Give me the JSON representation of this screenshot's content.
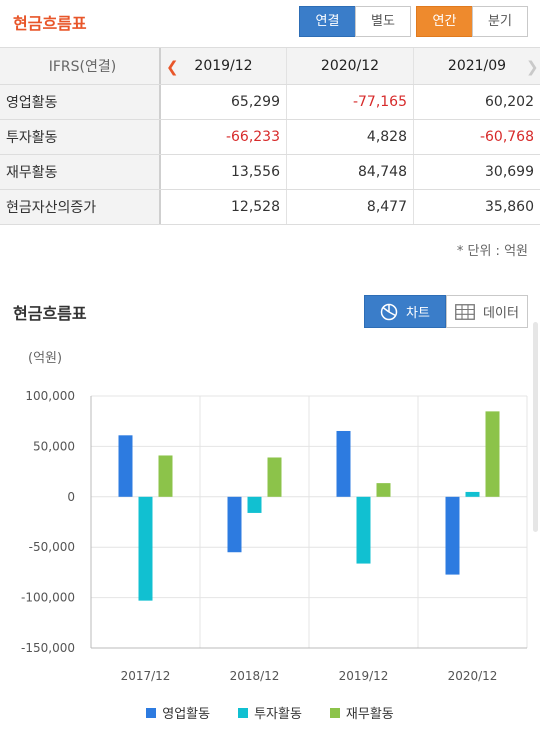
{
  "header": {
    "title": "현금흐름표",
    "toggle_consolidated": "연결",
    "toggle_separate": "별도",
    "toggle_annual": "연간",
    "toggle_quarter": "분기"
  },
  "table": {
    "corner_label": "IFRS(연결)",
    "periods": [
      "2019/12",
      "2020/12",
      "2021/09"
    ],
    "rows": [
      {
        "label": "영업활동",
        "values": [
          "65,299",
          "-77,165",
          "60,202"
        ]
      },
      {
        "label": "투자활동",
        "values": [
          "-66,233",
          "4,828",
          "-60,768"
        ]
      },
      {
        "label": "재무활동",
        "values": [
          "13,556",
          "84,748",
          "30,699"
        ]
      },
      {
        "label": "현금자산의증가",
        "values": [
          "12,528",
          "8,477",
          "35,860"
        ]
      }
    ],
    "unit_note": "* 단위 : 억원"
  },
  "chart_section": {
    "title": "현금흐름표",
    "chart_button": "차트",
    "data_button": "데이터",
    "icons": {
      "chart": "pie-chart-icon",
      "data": "table-grid-icon",
      "prev": "chevron-left-icon",
      "next": "chevron-right-icon"
    }
  },
  "colors": {
    "operating": "#2d7be0",
    "investing": "#11c0d1",
    "financing": "#8cc34a",
    "accent": "#e8562a",
    "negative": "#d72b2b",
    "active": "#3a7dc9",
    "active_orange": "#ee8a2d"
  },
  "chart_data": {
    "type": "bar",
    "unit_label": "(억원)",
    "categories": [
      "2017/12",
      "2018/12",
      "2019/12",
      "2020/12"
    ],
    "series": [
      {
        "name": "영업활동",
        "values": [
          61000,
          -55000,
          65299,
          -77165
        ]
      },
      {
        "name": "투자활동",
        "values": [
          -103000,
          -16000,
          -66233,
          4828
        ]
      },
      {
        "name": "재무활동",
        "values": [
          41000,
          39000,
          13556,
          84748
        ]
      }
    ],
    "ylim": [
      -150000,
      100000
    ],
    "yticks": [
      100000,
      50000,
      0,
      -50000,
      -100000,
      -150000
    ],
    "ytick_labels": [
      "100,000",
      "50,000",
      "0",
      "-50,000",
      "-100,000",
      "-150,000"
    ],
    "grid": true,
    "legend": "bottom"
  }
}
